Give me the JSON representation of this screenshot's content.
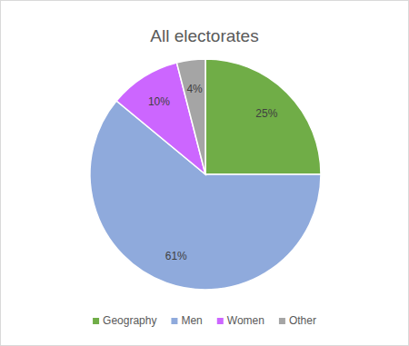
{
  "chart_data": {
    "type": "pie",
    "title": "All electorates",
    "categories": [
      "Geography",
      "Men",
      "Women",
      "Other"
    ],
    "values": [
      25,
      61,
      10,
      4
    ],
    "value_labels": [
      "25%",
      "61%",
      "10%",
      "4%"
    ],
    "colors": [
      "#70ad47",
      "#8faadc",
      "#cc66ff",
      "#a5a5a5"
    ],
    "data_labels": true,
    "legend": "bottom"
  }
}
